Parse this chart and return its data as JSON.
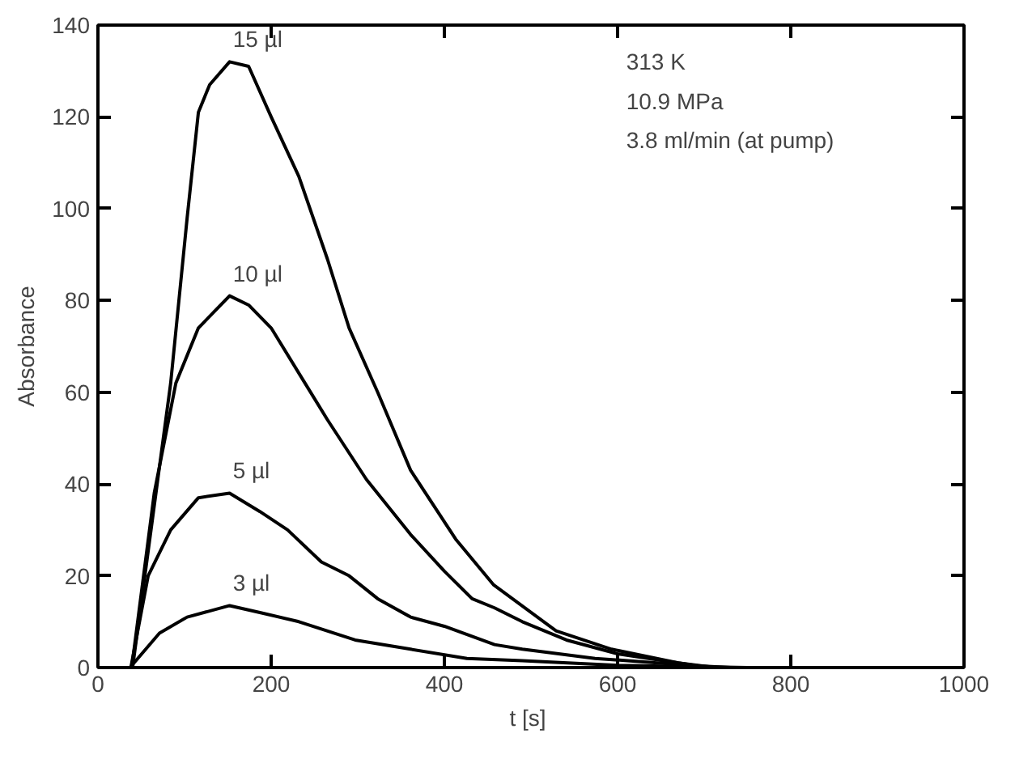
{
  "chart_data": {
    "type": "line",
    "xlabel": "t  [s]",
    "ylabel": "Absorbance",
    "xlim": [
      0,
      1000
    ],
    "ylim": [
      0,
      140
    ],
    "xticks": [
      0,
      200,
      400,
      600,
      800,
      1000
    ],
    "yticks": [
      0,
      20,
      40,
      60,
      80,
      100,
      120,
      140
    ],
    "grid": false,
    "line_style": "solid",
    "series": [
      {
        "name": "15 µl",
        "color": "#000000",
        "x": [
          40,
          84,
          103,
          116,
          129,
          152,
          174,
          200,
          232,
          265,
          290,
          323,
          361,
          413,
          457,
          529,
          593,
          670,
          713
        ],
        "values": [
          0,
          62,
          98,
          121,
          127,
          132,
          131,
          120,
          107,
          89,
          74,
          60,
          43,
          28,
          18,
          8,
          4,
          1,
          0
        ]
      },
      {
        "name": "10 µl",
        "color": "#000000",
        "x": [
          39,
          65,
          90,
          116,
          152,
          174,
          200,
          239,
          265,
          310,
          361,
          400,
          432,
          458,
          490,
          541,
          600,
          670,
          705
        ],
        "values": [
          0,
          38,
          62,
          74,
          81,
          79,
          74,
          62,
          54,
          41,
          29,
          21,
          15,
          13,
          10,
          6,
          3,
          1,
          0
        ]
      },
      {
        "name": "5 µl",
        "color": "#000000",
        "x": [
          38,
          58,
          84,
          116,
          152,
          187,
          219,
          258,
          290,
          323,
          361,
          400,
          458,
          490,
          574,
          683,
          730
        ],
        "values": [
          0,
          20,
          30,
          37,
          38,
          34,
          30,
          23,
          20,
          15,
          11,
          9,
          5,
          4,
          2,
          0.5,
          0
        ]
      },
      {
        "name": "3 µl",
        "color": "#000000",
        "x": [
          37,
          71,
          103,
          152,
          187,
          232,
          297,
          361,
          426,
          490,
          600,
          750
        ],
        "values": [
          0,
          7.5,
          11,
          13.5,
          12,
          10,
          6,
          4,
          2,
          1.5,
          0.5,
          0
        ]
      }
    ],
    "annotations": [
      "313 K",
      "10.9 MPa",
      "3.8 ml/min (at pump)"
    ]
  }
}
